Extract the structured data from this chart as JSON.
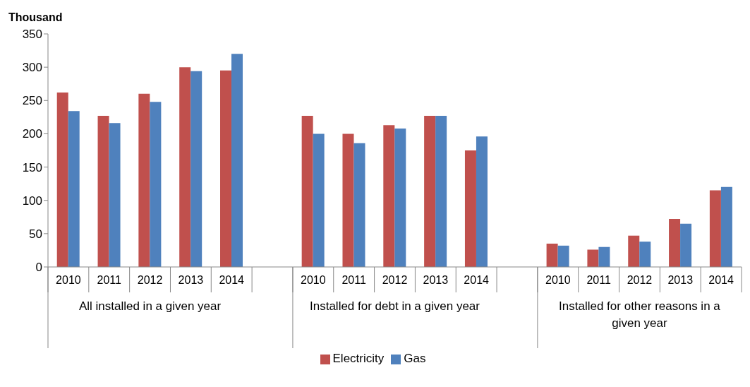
{
  "chart_data": {
    "type": "bar",
    "ylabel": "Thousand",
    "categories": [
      "2010",
      "2011",
      "2012",
      "2013",
      "2014",
      null,
      "2010",
      "2011",
      "2012",
      "2013",
      "2014",
      null,
      "2010",
      "2011",
      "2012",
      "2013",
      "2014"
    ],
    "series": [
      {
        "name": "Electricity",
        "color": "#c0504d",
        "values": [
          262,
          227,
          260,
          300,
          295,
          null,
          227,
          200,
          213,
          227,
          175,
          null,
          35,
          26,
          47,
          72,
          115
        ]
      },
      {
        "name": "Gas",
        "color": "#4f81bd",
        "values": [
          234,
          216,
          248,
          294,
          320,
          null,
          200,
          186,
          208,
          227,
          196,
          null,
          32,
          30,
          38,
          65,
          120
        ]
      }
    ],
    "annotations": [
      "All installed in a given year",
      "Installed for debt in a given year",
      "Installed for other reasons in a given year"
    ],
    "ylim": [
      0,
      350
    ],
    "yticks": [
      0,
      50,
      100,
      150,
      200,
      250,
      300,
      350
    ],
    "legend": "bottom"
  }
}
